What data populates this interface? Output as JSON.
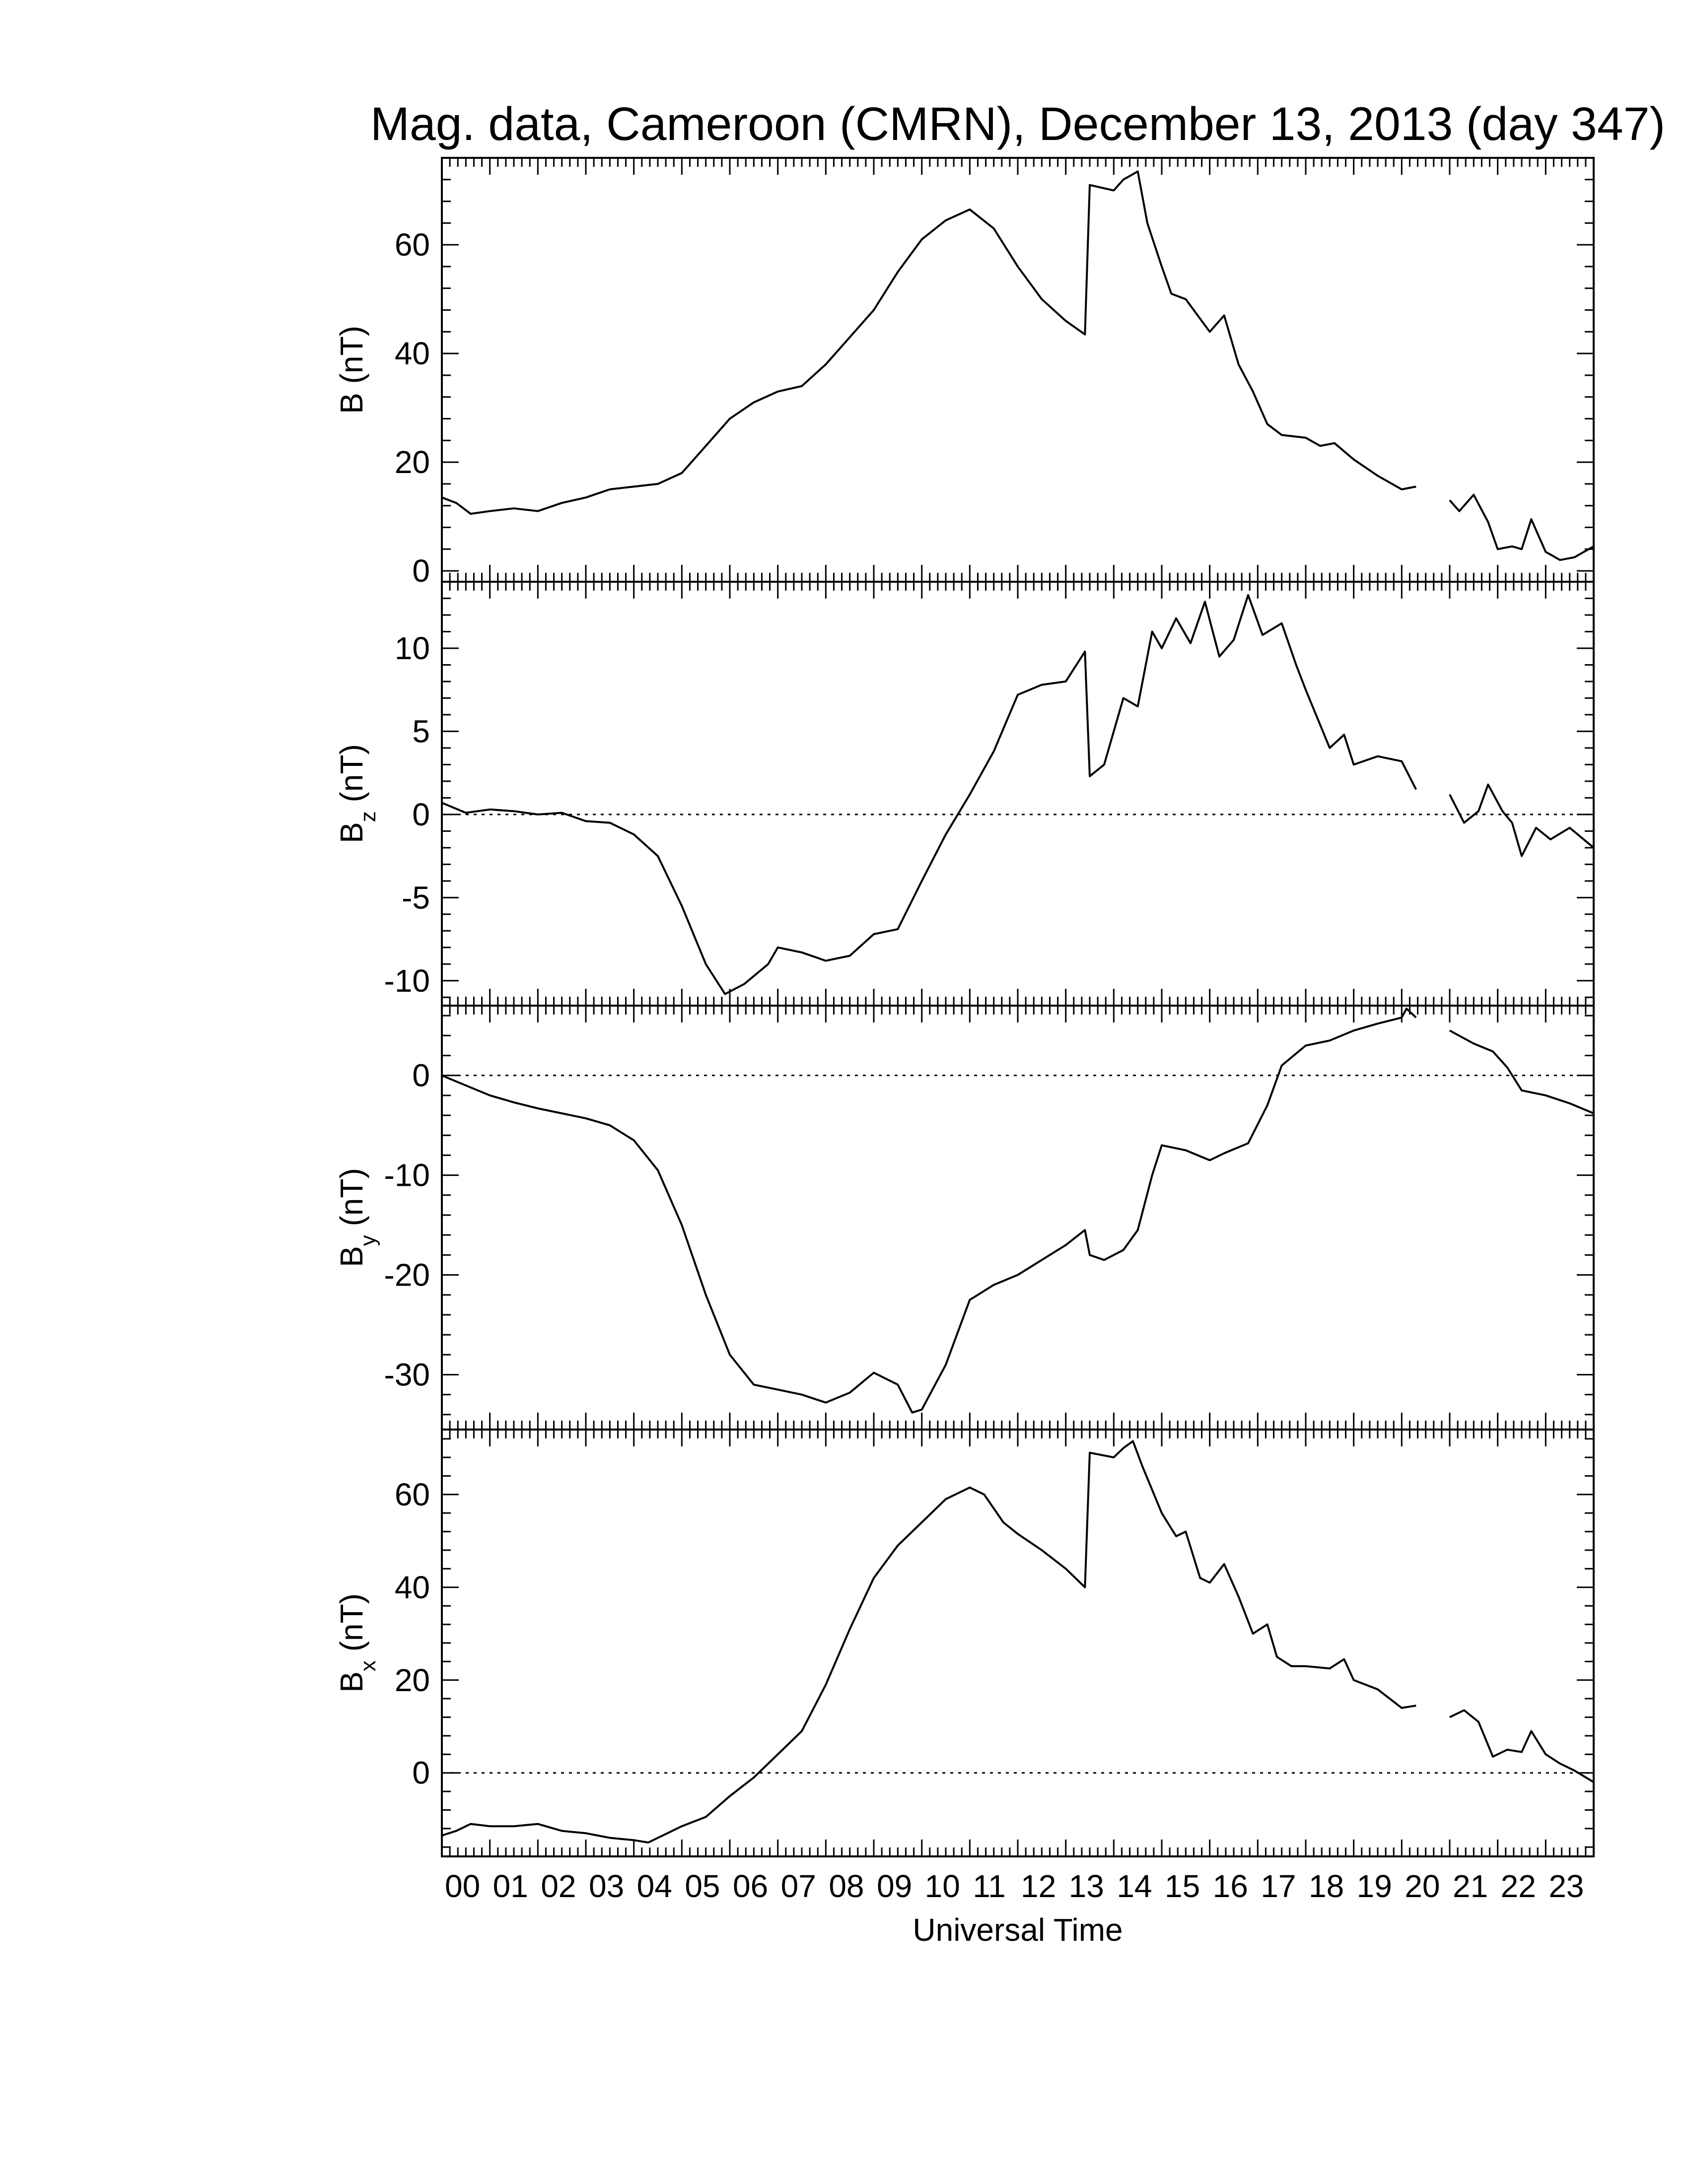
{
  "title": "Mag. data, Cameroon (CMRN), December 13, 2013 (day 347)",
  "chart_data": {
    "type": "line",
    "xlabel": "Universal Time",
    "xlim": [
      0,
      24
    ],
    "x_tick_labels": [
      "00",
      "01",
      "02",
      "03",
      "04",
      "05",
      "06",
      "07",
      "08",
      "09",
      "10",
      "11",
      "12",
      "13",
      "14",
      "15",
      "16",
      "17",
      "18",
      "19",
      "20",
      "21",
      "22",
      "23"
    ],
    "data_gap": [
      20.3,
      21.0
    ],
    "panels": [
      {
        "ylabel_main": "B",
        "ylabel_sub": "",
        "ylabel_unit": "(nT)",
        "ylim": [
          -2,
          76
        ],
        "yticks": [
          0,
          20,
          40,
          60
        ],
        "zero_line": false,
        "points": [
          [
            0,
            13.5
          ],
          [
            0.3,
            12.5
          ],
          [
            0.6,
            10.5
          ],
          [
            1,
            11
          ],
          [
            1.5,
            11.5
          ],
          [
            2,
            11
          ],
          [
            2.5,
            12.5
          ],
          [
            3,
            13.5
          ],
          [
            3.5,
            15
          ],
          [
            4,
            15.5
          ],
          [
            4.5,
            16
          ],
          [
            5,
            18
          ],
          [
            5.5,
            23
          ],
          [
            6,
            28
          ],
          [
            6.5,
            31
          ],
          [
            7,
            33
          ],
          [
            7.5,
            34
          ],
          [
            8,
            38
          ],
          [
            8.5,
            43
          ],
          [
            9,
            48
          ],
          [
            9.5,
            55
          ],
          [
            10,
            61
          ],
          [
            10.5,
            64.5
          ],
          [
            11,
            66.5
          ],
          [
            11.5,
            63
          ],
          [
            12,
            56
          ],
          [
            12.5,
            50
          ],
          [
            13,
            46
          ],
          [
            13.4,
            43.5
          ],
          [
            13.5,
            71
          ],
          [
            14,
            70
          ],
          [
            14.2,
            72
          ],
          [
            14.5,
            73.5
          ],
          [
            14.7,
            64
          ],
          [
            15,
            56
          ],
          [
            15.2,
            51
          ],
          [
            15.5,
            50
          ],
          [
            16,
            44
          ],
          [
            16.3,
            47
          ],
          [
            16.6,
            38
          ],
          [
            16.9,
            33
          ],
          [
            17.2,
            27
          ],
          [
            17.5,
            25
          ],
          [
            18,
            24.5
          ],
          [
            18.3,
            23
          ],
          [
            18.6,
            23.5
          ],
          [
            19,
            20.5
          ],
          [
            19.5,
            17.5
          ],
          [
            20,
            15
          ],
          [
            20.3,
            15.5
          ],
          [
            21,
            13
          ],
          [
            21.2,
            11
          ],
          [
            21.5,
            14
          ],
          [
            21.8,
            9
          ],
          [
            22,
            4
          ],
          [
            22.3,
            4.5
          ],
          [
            22.5,
            4
          ],
          [
            22.7,
            9.5
          ],
          [
            23,
            3.5
          ],
          [
            23.3,
            2
          ],
          [
            23.6,
            2.5
          ],
          [
            24,
            4.5
          ]
        ]
      },
      {
        "ylabel_main": "B",
        "ylabel_sub": "z",
        "ylabel_unit": "(nT)",
        "ylim": [
          -11.5,
          14
        ],
        "yticks": [
          -10,
          -5,
          0,
          5,
          10
        ],
        "zero_line": true,
        "points": [
          [
            0,
            0.7
          ],
          [
            0.5,
            0.1
          ],
          [
            1,
            0.3
          ],
          [
            1.5,
            0.2
          ],
          [
            2,
            0
          ],
          [
            2.5,
            0.1
          ],
          [
            3,
            -0.4
          ],
          [
            3.5,
            -0.5
          ],
          [
            4,
            -1.2
          ],
          [
            4.5,
            -2.5
          ],
          [
            5,
            -5.5
          ],
          [
            5.5,
            -9
          ],
          [
            5.9,
            -10.8
          ],
          [
            6.3,
            -10.2
          ],
          [
            6.8,
            -9
          ],
          [
            7,
            -8
          ],
          [
            7.5,
            -8.3
          ],
          [
            8,
            -8.8
          ],
          [
            8.5,
            -8.5
          ],
          [
            9,
            -7.2
          ],
          [
            9.5,
            -6.9
          ],
          [
            10,
            -4
          ],
          [
            10.5,
            -1.2
          ],
          [
            11,
            1.2
          ],
          [
            11.5,
            3.8
          ],
          [
            12,
            7.2
          ],
          [
            12.5,
            7.8
          ],
          [
            13,
            8
          ],
          [
            13.4,
            9.8
          ],
          [
            13.5,
            2.3
          ],
          [
            13.8,
            3
          ],
          [
            14.2,
            7
          ],
          [
            14.5,
            6.5
          ],
          [
            14.8,
            11
          ],
          [
            15,
            10
          ],
          [
            15.3,
            11.8
          ],
          [
            15.6,
            10.3
          ],
          [
            15.9,
            12.8
          ],
          [
            16.2,
            9.5
          ],
          [
            16.5,
            10.5
          ],
          [
            16.8,
            13.2
          ],
          [
            17.1,
            10.8
          ],
          [
            17.5,
            11.5
          ],
          [
            17.8,
            9
          ],
          [
            18,
            7.5
          ],
          [
            18.5,
            4
          ],
          [
            18.8,
            4.8
          ],
          [
            19,
            3
          ],
          [
            19.5,
            3.5
          ],
          [
            20,
            3.2
          ],
          [
            20.3,
            1.5
          ],
          [
            21,
            1.2
          ],
          [
            21.3,
            -0.5
          ],
          [
            21.6,
            0.2
          ],
          [
            21.8,
            1.8
          ],
          [
            22.1,
            0.2
          ],
          [
            22.3,
            -0.5
          ],
          [
            22.5,
            -2.5
          ],
          [
            22.8,
            -0.8
          ],
          [
            23.1,
            -1.5
          ],
          [
            23.5,
            -0.8
          ],
          [
            24,
            -2
          ]
        ]
      },
      {
        "ylabel_main": "B",
        "ylabel_sub": "y",
        "ylabel_unit": "(nT)",
        "ylim": [
          -35.5,
          7
        ],
        "yticks": [
          -30,
          -20,
          -10,
          0
        ],
        "zero_line": true,
        "points": [
          [
            0,
            0
          ],
          [
            0.5,
            -1
          ],
          [
            1,
            -2
          ],
          [
            1.5,
            -2.7
          ],
          [
            2,
            -3.3
          ],
          [
            2.5,
            -3.8
          ],
          [
            3,
            -4.3
          ],
          [
            3.5,
            -5
          ],
          [
            4,
            -6.5
          ],
          [
            4.5,
            -9.5
          ],
          [
            5,
            -15
          ],
          [
            5.5,
            -22
          ],
          [
            6,
            -28
          ],
          [
            6.5,
            -31
          ],
          [
            7,
            -31.5
          ],
          [
            7.5,
            -32
          ],
          [
            8,
            -32.8
          ],
          [
            8.5,
            -31.8
          ],
          [
            9,
            -29.8
          ],
          [
            9.5,
            -31
          ],
          [
            9.8,
            -33.8
          ],
          [
            10,
            -33.5
          ],
          [
            10.5,
            -29
          ],
          [
            11,
            -22.5
          ],
          [
            11.5,
            -21
          ],
          [
            12,
            -20
          ],
          [
            12.5,
            -18.5
          ],
          [
            13,
            -17
          ],
          [
            13.4,
            -15.5
          ],
          [
            13.5,
            -18
          ],
          [
            13.8,
            -18.5
          ],
          [
            14.2,
            -17.5
          ],
          [
            14.5,
            -15.5
          ],
          [
            14.8,
            -10
          ],
          [
            15,
            -7
          ],
          [
            15.5,
            -7.5
          ],
          [
            16,
            -8.5
          ],
          [
            16.3,
            -7.8
          ],
          [
            16.8,
            -6.8
          ],
          [
            17.2,
            -3
          ],
          [
            17.5,
            1
          ],
          [
            18,
            3
          ],
          [
            18.5,
            3.5
          ],
          [
            19,
            4.5
          ],
          [
            19.5,
            5.2
          ],
          [
            20,
            5.8
          ],
          [
            20.1,
            6.7
          ],
          [
            20.3,
            5.8
          ],
          [
            21,
            4.5
          ],
          [
            21.5,
            3.2
          ],
          [
            21.9,
            2.4
          ],
          [
            22.2,
            0.8
          ],
          [
            22.5,
            -1.5
          ],
          [
            23,
            -2
          ],
          [
            23.5,
            -2.8
          ],
          [
            24,
            -3.8
          ]
        ]
      },
      {
        "ylabel_main": "B",
        "ylabel_sub": "x",
        "ylabel_unit": "(nT)",
        "ylim": [
          -18,
          74
        ],
        "yticks": [
          0,
          20,
          40,
          60
        ],
        "zero_line": true,
        "points": [
          [
            0,
            -13.5
          ],
          [
            0.3,
            -12.5
          ],
          [
            0.6,
            -11
          ],
          [
            1,
            -11.5
          ],
          [
            1.5,
            -11.5
          ],
          [
            2,
            -11
          ],
          [
            2.5,
            -12.5
          ],
          [
            3,
            -13
          ],
          [
            3.5,
            -14
          ],
          [
            4,
            -14.5
          ],
          [
            4.3,
            -15
          ],
          [
            4.7,
            -13
          ],
          [
            5,
            -11.5
          ],
          [
            5.5,
            -9.5
          ],
          [
            6,
            -5
          ],
          [
            6.5,
            -1
          ],
          [
            7,
            4
          ],
          [
            7.5,
            9
          ],
          [
            8,
            19
          ],
          [
            8.5,
            31
          ],
          [
            9,
            42
          ],
          [
            9.5,
            49
          ],
          [
            10,
            54
          ],
          [
            10.5,
            59
          ],
          [
            11,
            61.5
          ],
          [
            11.3,
            60
          ],
          [
            11.7,
            54
          ],
          [
            12,
            51.5
          ],
          [
            12.5,
            48
          ],
          [
            13,
            44
          ],
          [
            13.4,
            40
          ],
          [
            13.5,
            69
          ],
          [
            14,
            68
          ],
          [
            14.2,
            70
          ],
          [
            14.4,
            71.5
          ],
          [
            14.6,
            66
          ],
          [
            15,
            56
          ],
          [
            15.3,
            51
          ],
          [
            15.5,
            52
          ],
          [
            15.8,
            42
          ],
          [
            16,
            41
          ],
          [
            16.3,
            45
          ],
          [
            16.6,
            38
          ],
          [
            16.9,
            30
          ],
          [
            17.2,
            32
          ],
          [
            17.4,
            25
          ],
          [
            17.7,
            23
          ],
          [
            18,
            23
          ],
          [
            18.5,
            22.5
          ],
          [
            18.8,
            24.5
          ],
          [
            19,
            20
          ],
          [
            19.5,
            18
          ],
          [
            20,
            14
          ],
          [
            20.3,
            14.5
          ],
          [
            21,
            12
          ],
          [
            21.3,
            13.5
          ],
          [
            21.6,
            11
          ],
          [
            21.9,
            3.5
          ],
          [
            22.2,
            5
          ],
          [
            22.5,
            4.5
          ],
          [
            22.7,
            9
          ],
          [
            23,
            4
          ],
          [
            23.3,
            2
          ],
          [
            23.6,
            0.5
          ],
          [
            24,
            -2
          ]
        ]
      }
    ]
  }
}
